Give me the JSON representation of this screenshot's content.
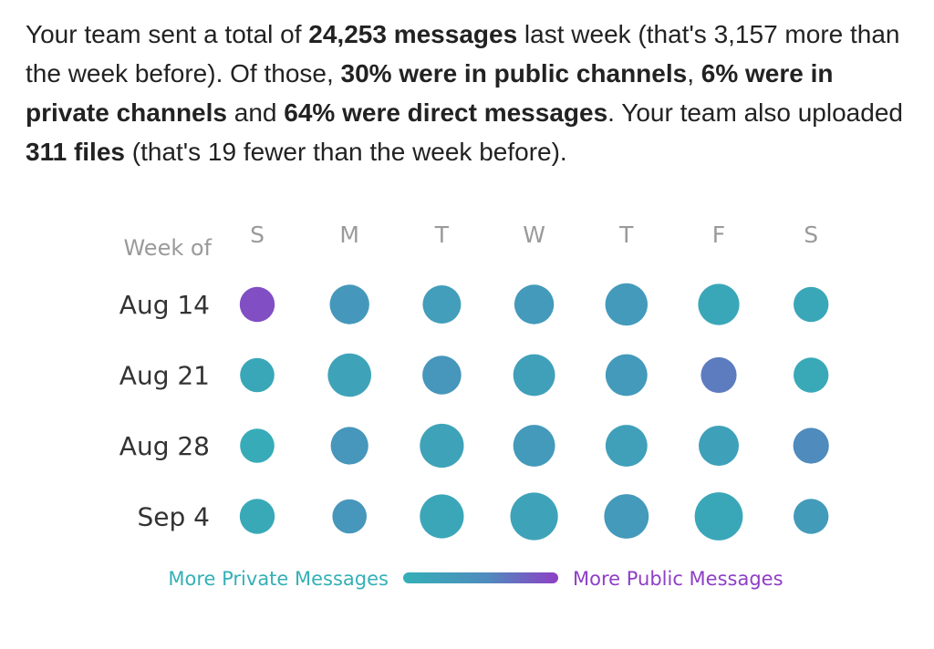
{
  "summary": {
    "s1": "Your team sent a total of ",
    "total_messages": "24,253 messages",
    "s2": " last week (that's 3,157 more than the week before). Of those, ",
    "public_pct": "30% were in public channels",
    "s3": ", ",
    "private_pct": "6% were in private channels",
    "s4": " and ",
    "direct_pct": "64% were direct messages",
    "s5": ". Your team also uploaded ",
    "files": "311 files",
    "s6": " (that's 19 fewer than the week before)."
  },
  "chart_data": {
    "type": "scatter",
    "title": "",
    "row_header": "Week of",
    "columns": [
      "S",
      "M",
      "T",
      "W",
      "T",
      "F",
      "S"
    ],
    "rows": [
      "Aug 14",
      "Aug 21",
      "Aug 28",
      "Sep 4"
    ],
    "size_scale": [
      0,
      100
    ],
    "color_scale": [
      0,
      1
    ],
    "values": [
      [
        26,
        33,
        31,
        33,
        38,
        36,
        26
      ],
      [
        25,
        40,
        32,
        37,
        37,
        27,
        26
      ],
      [
        25,
        30,
        41,
        37,
        37,
        34,
        27
      ],
      [
        26,
        25,
        41,
        48,
        42,
        49,
        26
      ]
    ],
    "public_share": [
      [
        0.9,
        0.32,
        0.25,
        0.3,
        0.3,
        0.12,
        0.12
      ],
      [
        0.12,
        0.18,
        0.35,
        0.22,
        0.3,
        0.6,
        0.1
      ],
      [
        0.06,
        0.35,
        0.18,
        0.3,
        0.22,
        0.2,
        0.5
      ],
      [
        0.1,
        0.35,
        0.14,
        0.18,
        0.3,
        0.12,
        0.28
      ]
    ],
    "legend": {
      "left": "More Private Messages",
      "right": "More Public Messages",
      "left_color": "#34b0b7",
      "right_color": "#8e3fc6"
    }
  }
}
